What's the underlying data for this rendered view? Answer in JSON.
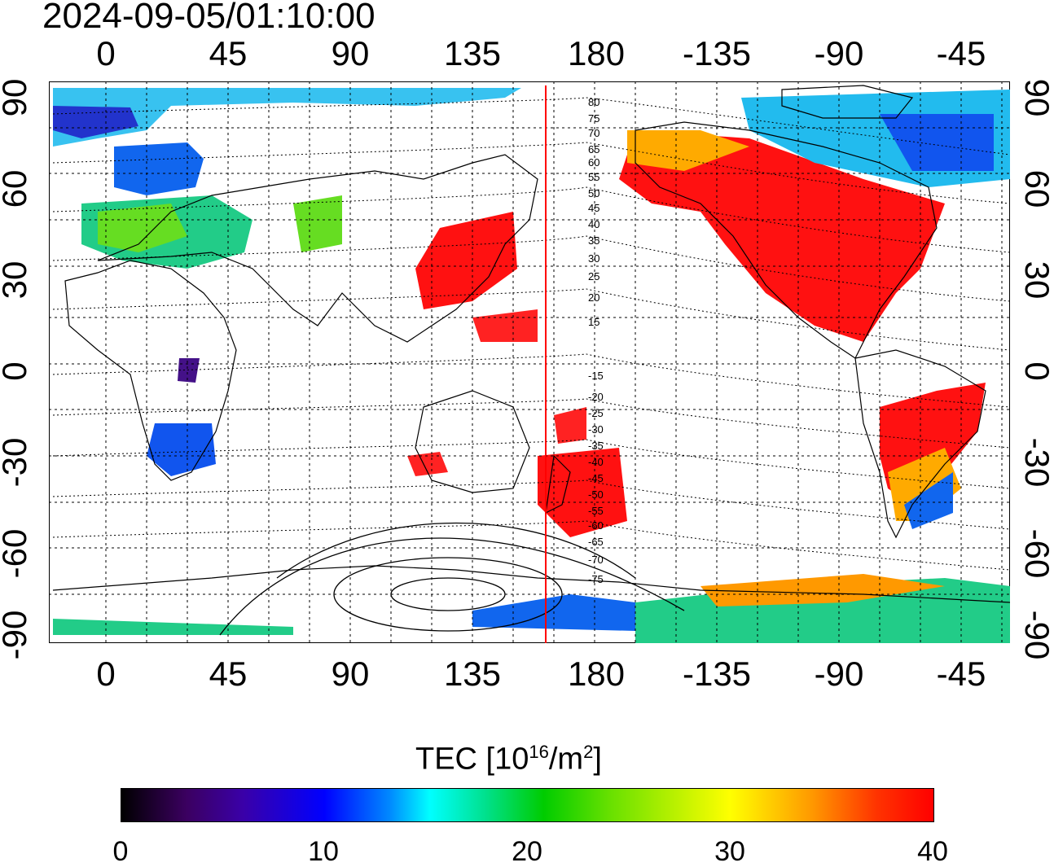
{
  "timestamp": "2024-09-05/01:10:00",
  "map": {
    "lon_labels": [
      "0",
      "45",
      "90",
      "135",
      "180",
      "-135",
      "-90",
      "-45"
    ],
    "lat_labels": [
      "90",
      "60",
      "30",
      "0",
      "-30",
      "-60",
      "-90"
    ],
    "contour_labels": [
      "80",
      "75",
      "70",
      "65",
      "60",
      "55",
      "50",
      "45",
      "40",
      "35",
      "30",
      "25",
      "20",
      "15",
      "-15",
      "-20",
      "-25",
      "-30",
      "-35",
      "-40",
      "-45",
      "-50",
      "-55",
      "-60",
      "-65",
      "-70",
      "-75"
    ],
    "terminator_line_color": "#ff0000",
    "missing_data_color": "#ffffff"
  },
  "colorbar": {
    "title_main": "TEC  [10",
    "title_exp": "16",
    "title_unit": "/m",
    "title_unit_exp": "2",
    "title_close": "]",
    "ticks": [
      "0",
      "10",
      "20",
      "30",
      "40"
    ],
    "range": [
      0,
      40
    ],
    "scale_colors": [
      "#000000",
      "#3b0060",
      "#0000ff",
      "#00ffff",
      "#00cc00",
      "#ffff00",
      "#ff9900",
      "#ff0000"
    ]
  }
}
